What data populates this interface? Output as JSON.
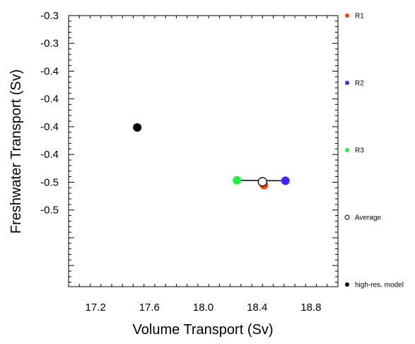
{
  "chart_data": {
    "type": "scatter",
    "xlabel": "Volume Transport (Sv)",
    "ylabel": "Freshwater Transport (Sv)",
    "xlim": [
      17.0,
      19.0
    ],
    "ylim": [
      -0.544,
      -0.3
    ],
    "x_ticks": [
      {
        "value": 17.2,
        "label": "17.2"
      },
      {
        "value": 17.6,
        "label": "17.6"
      },
      {
        "value": 18.0,
        "label": "18.0"
      },
      {
        "value": 18.4,
        "label": "18.4"
      },
      {
        "value": 18.8,
        "label": "18.8"
      }
    ],
    "y_ticks": [
      {
        "value": -0.3,
        "label": "-0.3"
      },
      {
        "value": -0.325,
        "label": "-0.3"
      },
      {
        "value": -0.35,
        "label": "-0.4"
      },
      {
        "value": -0.375,
        "label": "-0.4"
      },
      {
        "value": -0.4,
        "label": "-0.4"
      },
      {
        "value": -0.425,
        "label": "-0.4"
      },
      {
        "value": -0.45,
        "label": "-0.5"
      },
      {
        "value": -0.475,
        "label": "-0.5"
      }
    ],
    "grid": false,
    "legend_position": "right",
    "series": [
      {
        "name": "R1",
        "x": 18.45,
        "y": -0.4526,
        "color": "#ff4500",
        "filled": true
      },
      {
        "name": "R2",
        "x": 18.61,
        "y": -0.4487,
        "color": "#4a1fff",
        "filled": true
      },
      {
        "name": "R3",
        "x": 18.25,
        "y": -0.4483,
        "color": "#22ee44",
        "filled": true
      },
      {
        "name": "Average",
        "x": 18.44,
        "y": -0.4496,
        "color": "#000000",
        "filled": false
      },
      {
        "name": "high-res. model",
        "x": 17.51,
        "y": -0.4007,
        "color": "#000000",
        "filled": true
      }
    ],
    "segments": [
      {
        "from": "R3",
        "to": "R2"
      },
      {
        "from": "Average",
        "to": "R1"
      }
    ]
  }
}
